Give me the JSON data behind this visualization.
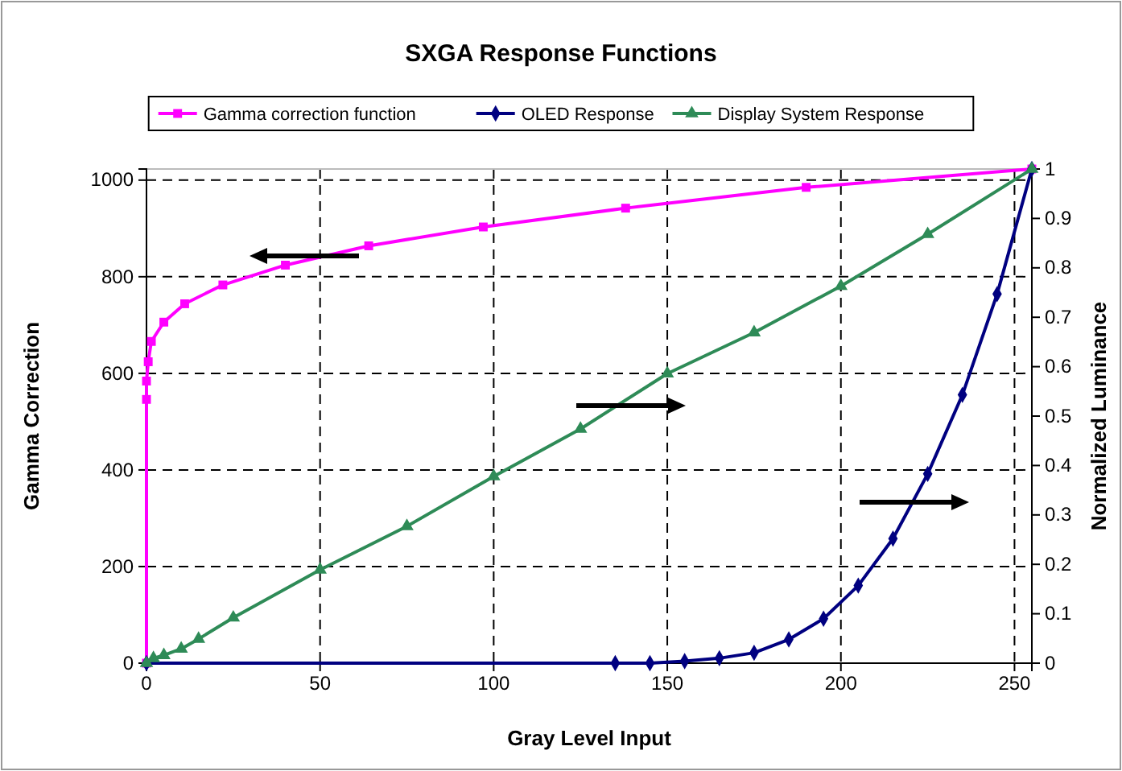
{
  "chart_data": {
    "type": "line",
    "title": "SXGA Response Functions",
    "xlabel": "Gray Level Input",
    "ylabel": "Gamma Correction",
    "y2label": "Normalized Luminance",
    "xlim": [
      0,
      255
    ],
    "xticks": [
      0,
      50,
      100,
      150,
      200,
      250
    ],
    "ylim": [
      0,
      1023
    ],
    "yticks": [
      0,
      200,
      400,
      600,
      800,
      1000
    ],
    "y2lim": [
      0,
      1
    ],
    "y2ticks": [
      0,
      0.1,
      0.2,
      0.3,
      0.4,
      0.5,
      0.6,
      0.7,
      0.8,
      0.9,
      1
    ],
    "grid": true,
    "legend": "top",
    "line_style": "solid",
    "series": [
      {
        "name": "Gamma correction function",
        "color": "#ff00ff",
        "marker": "square",
        "x": [
          0,
          0,
          0,
          0.5,
          1.4,
          5,
          11,
          22,
          40,
          64,
          97,
          138,
          190,
          255
        ],
        "values": [
          0,
          546,
          584,
          624,
          666,
          706,
          744,
          783,
          824,
          864,
          903,
          942,
          985,
          1023
        ]
      },
      {
        "name": "OLED Response",
        "color": "#000080",
        "marker": "diamond",
        "axis": "y2",
        "x": [
          0,
          135,
          145,
          155,
          165,
          175,
          185,
          195,
          205,
          215,
          225,
          235,
          245,
          255
        ],
        "values": [
          0,
          0,
          0,
          0.004,
          0.01,
          0.021,
          0.048,
          0.09,
          0.157,
          0.252,
          0.383,
          0.543,
          0.747,
          1
        ]
      },
      {
        "name": "Display System Response",
        "color": "#2e8b57",
        "marker": "triangle",
        "axis": "y2",
        "x": [
          0,
          2,
          5,
          10,
          15,
          25,
          50,
          75,
          100,
          125,
          150,
          175,
          200,
          225,
          255
        ],
        "values": [
          0,
          0.01,
          0.016,
          0.029,
          0.049,
          0.092,
          0.189,
          0.277,
          0.378,
          0.474,
          0.586,
          0.669,
          0.763,
          0.868,
          1
        ]
      }
    ]
  }
}
